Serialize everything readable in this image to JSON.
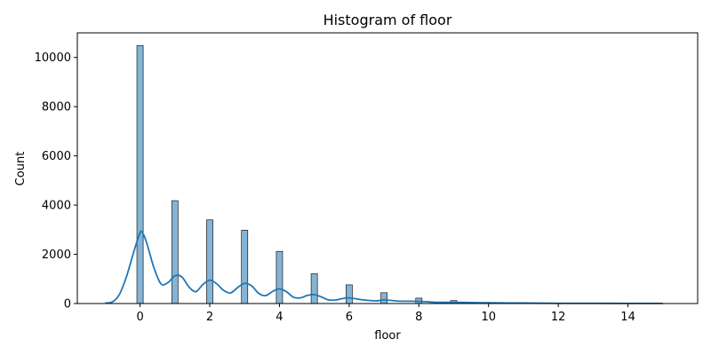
{
  "chart_data": {
    "type": "bar",
    "title": "Histogram of floor",
    "xlabel": "floor",
    "ylabel": "Count",
    "xlim": [
      -1.8,
      16.0
    ],
    "ylim": [
      0,
      11000
    ],
    "xticks": [
      0,
      2,
      4,
      6,
      8,
      10,
      12,
      14
    ],
    "yticks": [
      0,
      2000,
      4000,
      6000,
      8000,
      10000
    ],
    "grid": false,
    "bar_color": "#1f77b4",
    "kde_color": "#1f77b4",
    "bars": [
      {
        "x": 0,
        "count": 10480
      },
      {
        "x": 1,
        "count": 4180
      },
      {
        "x": 2,
        "count": 3400
      },
      {
        "x": 3,
        "count": 2980
      },
      {
        "x": 4,
        "count": 2120
      },
      {
        "x": 5,
        "count": 1210
      },
      {
        "x": 6,
        "count": 760
      },
      {
        "x": 7,
        "count": 440
      },
      {
        "x": 8,
        "count": 220
      },
      {
        "x": 9,
        "count": 120
      },
      {
        "x": 10,
        "count": 40
      },
      {
        "x": 11,
        "count": 15
      },
      {
        "x": 12,
        "count": 8
      },
      {
        "x": 13,
        "count": 4
      },
      {
        "x": 14,
        "count": 3
      },
      {
        "x": 15,
        "count": 2
      }
    ],
    "kde": {
      "x": [
        -1.0,
        -0.8,
        -0.6,
        -0.4,
        -0.2,
        0.0,
        0.1,
        0.2,
        0.4,
        0.6,
        0.8,
        1.0,
        1.2,
        1.4,
        1.6,
        1.8,
        2.0,
        2.2,
        2.4,
        2.6,
        2.8,
        3.0,
        3.2,
        3.4,
        3.6,
        3.8,
        4.0,
        4.2,
        4.4,
        4.6,
        4.8,
        5.0,
        5.2,
        5.4,
        5.6,
        5.8,
        6.0,
        6.4,
        6.8,
        7.0,
        7.4,
        8.0,
        8.5,
        9.0,
        9.5,
        10.0,
        11.0,
        12.0,
        13.0,
        14.0,
        15.0
      ],
      "y": [
        20,
        60,
        350,
        1050,
        2000,
        2880,
        2800,
        2420,
        1450,
        800,
        850,
        1130,
        1080,
        680,
        480,
        770,
        950,
        800,
        530,
        430,
        650,
        820,
        720,
        420,
        320,
        490,
        600,
        480,
        260,
        230,
        330,
        360,
        270,
        150,
        140,
        200,
        230,
        150,
        110,
        150,
        100,
        90,
        50,
        50,
        40,
        30,
        20,
        10,
        8,
        5,
        4
      ]
    }
  }
}
